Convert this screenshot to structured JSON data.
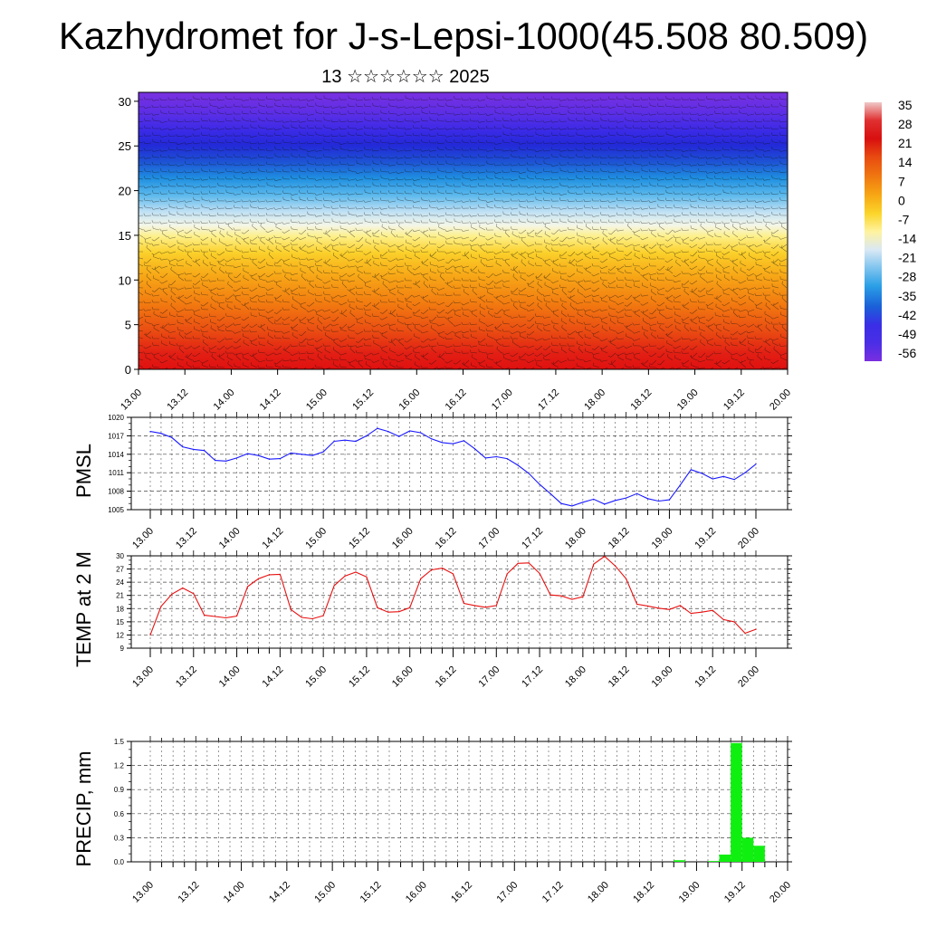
{
  "title": "Kazhydromet for J-s-Lepsi-1000(45.508 80.509)",
  "subtitle": "13 ☆☆☆☆☆☆ 2025",
  "time_labels": [
    "13.00",
    "13.12",
    "14.00",
    "14.12",
    "15.00",
    "15.12",
    "16.00",
    "16.12",
    "17.00",
    "17.12",
    "18.00",
    "18.12",
    "19.00",
    "19.12",
    "20.00"
  ],
  "chart_data": [
    {
      "type": "heatmap",
      "title": "",
      "xlabel": "",
      "ylabel": "",
      "x_ticks": [
        "13.00",
        "13.12",
        "14.00",
        "14.12",
        "15.00",
        "15.12",
        "16.00",
        "16.12",
        "17.00",
        "17.12",
        "18.00",
        "18.12",
        "19.00",
        "19.12",
        "20.00"
      ],
      "y_ticks": [
        0,
        5,
        10,
        15,
        20,
        25,
        30
      ],
      "ylim": [
        0,
        31
      ],
      "overlay": "wind barbs",
      "colorbar": {
        "labels": [
          "35",
          "28",
          "21",
          "14",
          "7",
          "0",
          "-7",
          "-14",
          "-21",
          "-28",
          "-35",
          "-42",
          "-49",
          "-56"
        ],
        "colors": [
          "#f0c8c8",
          "#e03030",
          "#d80f0f",
          "#e84a10",
          "#f07a10",
          "#f7a814",
          "#fbd52a",
          "#fff3a0",
          "#d9e8f5",
          "#7fc4ef",
          "#2a9fe6",
          "#1a5fd8",
          "#3a2ee6",
          "#7a2ee0"
        ]
      },
      "profile": [
        {
          "y": 0,
          "temp": 21
        },
        {
          "y": 3,
          "temp": 17
        },
        {
          "y": 7,
          "temp": 10
        },
        {
          "y": 11,
          "temp": 3
        },
        {
          "y": 14,
          "temp": -5
        },
        {
          "y": 16.5,
          "temp": -14
        },
        {
          "y": 19,
          "temp": -28
        },
        {
          "y": 21.5,
          "temp": -42
        },
        {
          "y": 24,
          "temp": -52
        },
        {
          "y": 26.5,
          "temp": -56
        },
        {
          "y": 31,
          "temp": -60
        }
      ]
    },
    {
      "type": "line",
      "title": "",
      "ylabel": "PMSL",
      "ylim": [
        1005,
        1020
      ],
      "y_ticks": [
        1005,
        1008,
        1011,
        1014,
        1017,
        1020
      ],
      "color": "#1a1aff",
      "series": [
        {
          "name": "",
          "values": [
            1017.7,
            1017.4,
            1016.7,
            1015.2,
            1014.8,
            1014.6,
            1013.0,
            1012.9,
            1013.4,
            1014.1,
            1013.8,
            1013.2,
            1013.3,
            1014.2,
            1014.0,
            1013.8,
            1014.4,
            1016.1,
            1016.3,
            1016.1,
            1017.0,
            1018.2,
            1017.7,
            1016.9,
            1017.8,
            1017.5,
            1016.5,
            1015.9,
            1015.7,
            1016.2,
            1014.9,
            1013.4,
            1013.6,
            1013.3,
            1012.2,
            1010.9,
            1009.1,
            1007.6,
            1006.0,
            1005.6,
            1006.2,
            1006.7,
            1005.9,
            1006.5,
            1006.9,
            1007.6,
            1006.8,
            1006.4,
            1006.6,
            1009.0,
            1011.5,
            1010.9,
            1010.0,
            1010.4,
            1009.9,
            1011.0,
            1012.4
          ]
        }
      ],
      "x_range": [
        0,
        56
      ]
    },
    {
      "type": "line",
      "title": "",
      "ylabel": "TEMP at 2 M",
      "ylim": [
        9,
        30
      ],
      "y_ticks": [
        9,
        12,
        15,
        18,
        21,
        24,
        27,
        30
      ],
      "color": "#e81010",
      "series": [
        {
          "name": "",
          "values": [
            12.0,
            18.5,
            21.3,
            22.7,
            21.4,
            16.5,
            16.2,
            15.9,
            16.3,
            23.0,
            24.8,
            25.7,
            25.8,
            17.8,
            16.0,
            15.7,
            16.4,
            23.2,
            25.4,
            26.3,
            25.2,
            18.2,
            17.2,
            17.3,
            18.2,
            24.8,
            26.8,
            27.2,
            25.9,
            19.2,
            18.7,
            18.3,
            18.7,
            25.9,
            28.3,
            28.4,
            26.0,
            21.1,
            20.9,
            20.1,
            20.7,
            28.1,
            29.9,
            27.7,
            24.8,
            19.0,
            18.6,
            18.1,
            17.8,
            18.7,
            16.9,
            17.2,
            17.6,
            15.5,
            15.0,
            12.4,
            13.3
          ]
        }
      ],
      "x_range": [
        0,
        56
      ]
    },
    {
      "type": "bar",
      "title": "",
      "ylabel": "PRECIP, mm",
      "ylim": [
        0,
        1.5
      ],
      "y_ticks": [
        "0.0",
        "0.3",
        "0.6",
        "0.9",
        "1.2",
        "1.5"
      ],
      "color": "#10f010",
      "bars": [
        {
          "x": 46.5,
          "value": 0.02
        },
        {
          "x": 49.5,
          "value": 0.01
        },
        {
          "x": 50.5,
          "value": 0.09
        },
        {
          "x": 51.5,
          "value": 1.48
        },
        {
          "x": 52.5,
          "value": 0.3
        },
        {
          "x": 53.5,
          "value": 0.2
        }
      ],
      "x_range": [
        0,
        56
      ]
    }
  ]
}
